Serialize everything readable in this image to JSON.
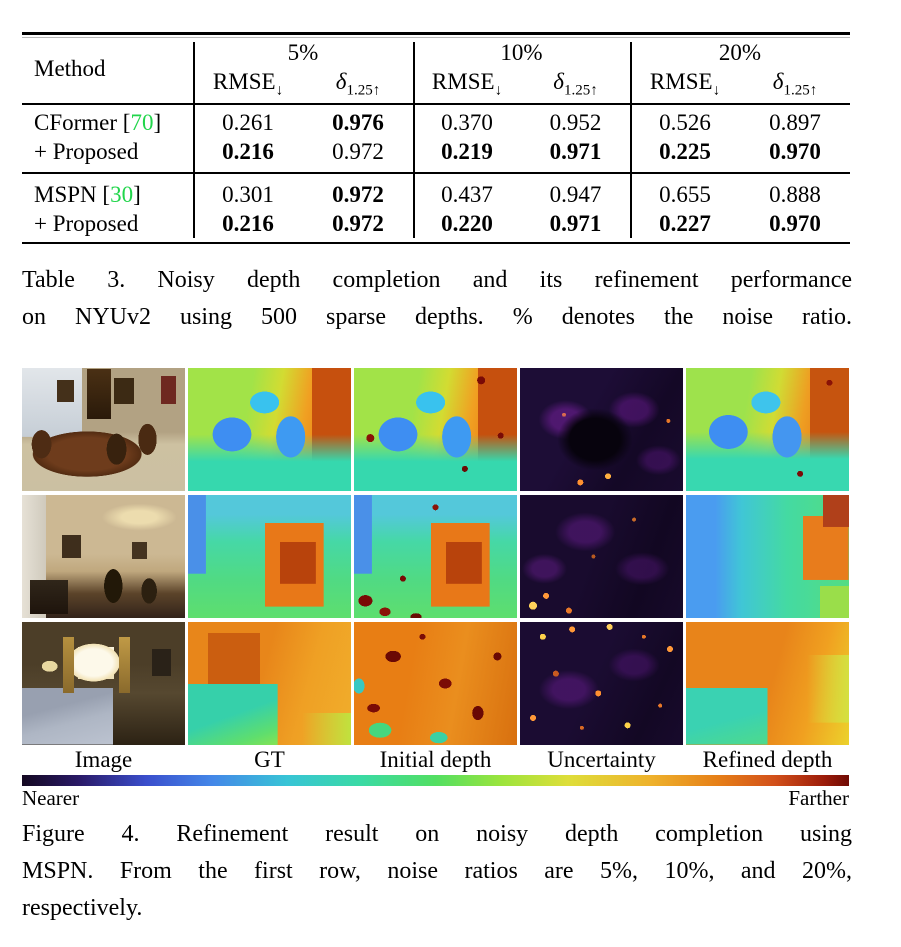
{
  "colors": {
    "citation_green": "#21d54b",
    "colorbar_near_color": "#140821",
    "colorbar_far_color": "#6f0a04"
  },
  "table": {
    "method_header": "Method",
    "groups": [
      "5%",
      "10%",
      "20%"
    ],
    "metrics": {
      "rmse": "RMSE",
      "rmse_sub": "↓",
      "delta": "δ",
      "delta_sub": "1.25↑"
    },
    "rows": [
      {
        "method": "CFormer [",
        "ref": "70",
        "close": "]",
        "values": [
          "0.261",
          "0.976",
          "0.370",
          "0.952",
          "0.526",
          "0.897"
        ]
      },
      {
        "method": "+ Proposed",
        "ref": "",
        "close": "",
        "values": [
          "0.216",
          "0.972",
          "0.219",
          "0.971",
          "0.225",
          "0.970"
        ]
      },
      {
        "method": "MSPN [",
        "ref": "30",
        "close": "]",
        "values": [
          "0.301",
          "0.972",
          "0.437",
          "0.947",
          "0.655",
          "0.888"
        ]
      },
      {
        "method": "+ Proposed",
        "ref": "",
        "close": "",
        "values": [
          "0.216",
          "0.972",
          "0.220",
          "0.971",
          "0.227",
          "0.970"
        ]
      }
    ],
    "caption_lines": [
      "Table 3.  Noisy depth completion and its refinement performance",
      "on NYUv2 using 500 sparse depths. % denotes the noise ratio."
    ]
  },
  "figure": {
    "column_labels": [
      "Image",
      "GT",
      "Initial depth",
      "Uncertainty",
      "Refined depth"
    ],
    "colorbar": {
      "near_label": "Nearer",
      "far_label": "Farther"
    },
    "caption_lines": [
      "Figure 4.  Refinement result on noisy depth completion using",
      "MSPN. From the first row, noise ratios are 5%, 10%, and 20%,",
      "respectively."
    ]
  }
}
